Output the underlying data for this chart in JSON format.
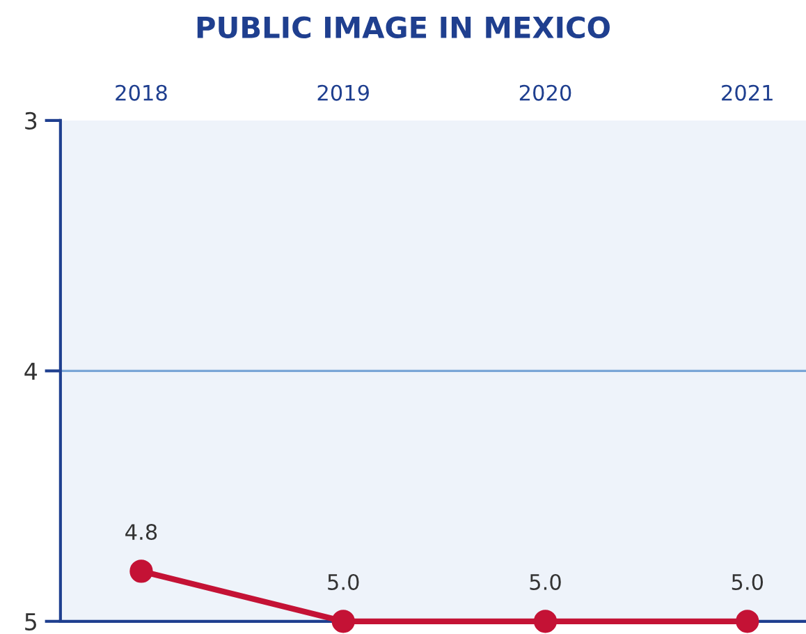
{
  "chart_data": {
    "type": "line",
    "title": "PUBLIC IMAGE IN MEXICO",
    "categories": [
      "2018",
      "2019",
      "2020",
      "2021"
    ],
    "series": [
      {
        "color": "#c41235",
        "values": [
          4.8,
          5.0,
          5.0,
          5.0
        ],
        "value_labels": [
          "4.8",
          "5.0",
          "5.0",
          "5.0"
        ]
      }
    ],
    "ylim": [
      5,
      3
    ],
    "yticks": [
      3,
      4,
      5
    ],
    "ref_lines": [
      {
        "axis": "y",
        "value": 4,
        "color": "#7aa6d6",
        "line_style": "solid"
      }
    ],
    "marker": "circle",
    "line_style": "solid"
  }
}
